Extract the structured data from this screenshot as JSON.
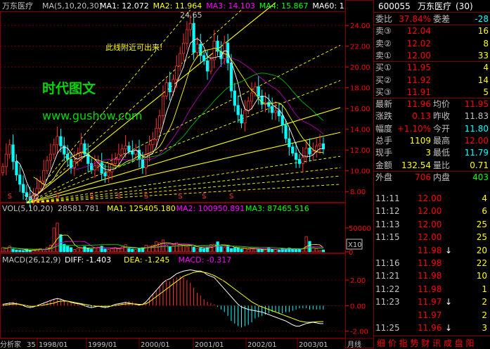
{
  "chart_data": [
    {
      "type": "candlestick",
      "panel": "price",
      "title": "万东医疗",
      "indicator_label": "MA(5,10,20,30)",
      "indicators": [
        {
          "name": "MA1",
          "value": "12.072",
          "color": "#ffffff"
        },
        {
          "name": "MA2",
          "value": "11.964",
          "color": "#ffff00"
        },
        {
          "name": "MA3",
          "value": "14.103",
          "color": "#ff00ff"
        },
        {
          "name": "MA4",
          "value": "15.867",
          "color": "#00ff00"
        },
        {
          "name": "MA60",
          "value": "1",
          "color": "#ffffff"
        }
      ],
      "y_ticks": [
        "24.00",
        "22.00",
        "20.00",
        "18.00",
        "16.00",
        "14.00",
        "12.00",
        "10.00",
        "8.00"
      ],
      "ylim": [
        7.0,
        25.3
      ],
      "peak_label": "24.65",
      "low_label": "7.02",
      "annotations": [
        "此线附近可出来!",
        "时代图文",
        "www.gushow.com"
      ],
      "s_marker": "S",
      "s_markers_x": [
        2,
        8,
        16,
        26,
        34,
        42,
        52,
        59,
        67
      ],
      "closes": [
        10.4,
        11.6,
        12.5,
        10.9,
        9.6,
        8.7,
        7.9,
        7.5,
        7.2,
        7.7,
        8.3,
        9.0,
        10.0,
        11.0,
        11.6,
        12.5,
        13.3,
        12.4,
        11.6,
        11.1,
        10.3,
        10.9,
        11.7,
        12.6,
        11.6,
        10.7,
        10.1,
        10.5,
        10.8,
        9.8,
        9.5,
        9.9,
        10.7,
        11.1,
        11.6,
        12.1,
        12.4,
        11.9,
        11.6,
        12.0,
        11.1,
        10.3,
        11.6,
        12.5,
        13.0,
        14.1,
        15.3,
        17.2,
        18.5,
        17.6,
        18.8,
        20.1,
        21.3,
        22.3,
        23.6,
        24.2,
        21.4,
        22.2,
        21.1,
        20.6,
        19.6,
        20.7,
        22.5,
        21.5,
        20.8,
        22.3,
        20.4,
        17.7,
        16.3,
        15.4,
        14.6,
        15.8,
        16.7,
        17.5,
        18.1,
        17.2,
        16.4,
        16.6,
        16.2,
        15.6,
        15.8,
        15.3,
        14.4,
        13.1,
        12.3,
        11.7,
        11.1,
        10.7,
        11.3,
        12.2,
        11.6,
        11.9,
        12.4,
        12.6,
        12.1
      ]
    },
    {
      "type": "bar",
      "panel": "volume",
      "indicator_label": "VOL(5,10,20)",
      "value": "28581.781",
      "indicators": [
        {
          "name": "MA1",
          "value": "125405.180",
          "color": "#ffff00"
        },
        {
          "name": "MA2",
          "value": "100950.891",
          "color": "#ff00ff"
        },
        {
          "name": "MA3",
          "value": "87465.516",
          "color": "#00ff00"
        }
      ],
      "y_ticks": [
        "50000",
        "0"
      ],
      "ylim": [
        0,
        85000
      ],
      "unit_label": "X10",
      "values": [
        9000,
        7000,
        12000,
        6000,
        4000,
        3500,
        3000,
        5000,
        3000,
        3200,
        6000,
        7000,
        5000,
        9000,
        14000,
        50000,
        60000,
        36000,
        16000,
        12000,
        9000,
        5000,
        7000,
        9000,
        11000,
        8000,
        6000,
        9000,
        10000,
        12000,
        6000,
        5000,
        7000,
        9000,
        8000,
        11000,
        15000,
        7000,
        6000,
        5000,
        8000,
        9000,
        14000,
        12000,
        14000,
        21000,
        19000,
        25000,
        15000,
        11000,
        13000,
        19000,
        16000,
        13000,
        11000,
        13000,
        10000,
        7000,
        8000,
        7000,
        9000,
        15000,
        16000,
        21000,
        12000,
        9000,
        12000,
        7000,
        8000,
        9000,
        6000,
        8000,
        5000,
        7000,
        6000,
        5000,
        6000,
        4000,
        9000,
        6000,
        5000,
        4000,
        7000,
        6000,
        8000,
        6000,
        5000,
        6000,
        7000,
        32000,
        22000,
        9000,
        7000,
        3000,
        4000
      ]
    },
    {
      "type": "bar",
      "panel": "macd",
      "indicator_label": "MACD(26,12,9)",
      "indicators": [
        {
          "name": "DIFF",
          "value": "-1.403",
          "color": "#ffffff"
        },
        {
          "name": "DEA",
          "value": "-1.245",
          "color": "#ffff00"
        },
        {
          "name": "MACD",
          "value": "-0.317",
          "color": "#ff00ff"
        }
      ],
      "y_ticks": [
        "2.00",
        "0.00",
        "-2.00"
      ],
      "ylim": [
        -2.4,
        3.1
      ],
      "values": [
        0.15,
        0.2,
        0.25,
        0.3,
        0.25,
        0.15,
        0.05,
        -0.05,
        -0.1,
        -0.05,
        0.05,
        0.1,
        0.2,
        0.3,
        0.4,
        0.5,
        0.6,
        0.55,
        0.4,
        0.3,
        0.2,
        0.15,
        0.1,
        0.05,
        -0.05,
        -0.1,
        -0.15,
        -0.1,
        -0.05,
        -0.1,
        -0.15,
        -0.1,
        -0.05,
        0.05,
        0.1,
        0.2,
        0.3,
        0.35,
        0.3,
        0.2,
        0.1,
        0.1,
        0.3,
        0.6,
        0.9,
        1.2,
        1.5,
        1.8,
        2.0,
        1.9,
        2.1,
        2.2,
        2.3,
        2.2,
        2.0,
        1.8,
        1.4,
        1.0,
        0.8,
        0.5,
        0.3,
        0.2,
        0.1,
        -0.1,
        -0.3,
        -0.5,
        -0.8,
        -1.2,
        -1.4,
        -1.6,
        -1.7,
        -1.6,
        -1.5,
        -1.3,
        -1.0,
        -0.9,
        -0.8,
        -0.7,
        -0.6,
        -0.5,
        -0.5,
        -0.6,
        -0.6,
        -0.5,
        -0.5,
        -0.4,
        -0.3,
        -0.2,
        -0.2,
        -0.2,
        -0.3,
        -0.3,
        -0.3,
        -0.3,
        -0.3
      ],
      "diff": [
        0.1,
        0.15,
        0.2,
        0.2,
        0.15,
        0.1,
        0.0,
        -0.1,
        -0.15,
        -0.1,
        0.0,
        0.1,
        0.2,
        0.3,
        0.4,
        0.5,
        0.55,
        0.5,
        0.4,
        0.35,
        0.25,
        0.2,
        0.15,
        0.1,
        0.0,
        -0.1,
        -0.15,
        -0.1,
        -0.05,
        -0.1,
        -0.15,
        -0.1,
        0.0,
        0.1,
        0.15,
        0.2,
        0.25,
        0.2,
        0.15,
        0.1,
        0.05,
        0.1,
        0.3,
        0.6,
        0.9,
        1.2,
        1.5,
        1.8,
        2.0,
        2.1,
        2.3,
        2.5,
        2.6,
        2.7,
        2.75,
        2.8,
        2.75,
        2.7,
        2.7,
        2.6,
        2.4,
        2.3,
        2.2,
        1.9,
        1.6,
        1.3,
        1.0,
        0.7,
        0.4,
        0.1,
        -0.1,
        -0.2,
        -0.3,
        -0.35,
        -0.4,
        -0.45,
        -0.5,
        -0.6,
        -0.7,
        -0.8,
        -0.9,
        -1.0,
        -1.1,
        -1.2,
        -1.35,
        -1.5,
        -1.6,
        -1.6,
        -1.5,
        -1.4,
        -1.35,
        -1.3,
        -1.35,
        -1.4,
        -1.4
      ],
      "dea": [
        0.0,
        0.05,
        0.1,
        0.12,
        0.12,
        0.1,
        0.05,
        0.0,
        -0.05,
        -0.05,
        -0.03,
        0.0,
        0.05,
        0.1,
        0.15,
        0.2,
        0.3,
        0.35,
        0.35,
        0.35,
        0.3,
        0.25,
        0.2,
        0.15,
        0.1,
        0.05,
        0.0,
        -0.03,
        -0.05,
        -0.05,
        -0.05,
        -0.04,
        -0.02,
        0.0,
        0.05,
        0.1,
        0.12,
        0.14,
        0.14,
        0.12,
        0.1,
        0.1,
        0.15,
        0.3,
        0.5,
        0.7,
        0.9,
        1.1,
        1.3,
        1.5,
        1.7,
        1.9,
        2.1,
        2.3,
        2.4,
        2.5,
        2.6,
        2.65,
        2.65,
        2.6,
        2.55,
        2.45,
        2.35,
        2.2,
        2.05,
        1.9,
        1.7,
        1.5,
        1.3,
        1.1,
        0.9,
        0.7,
        0.5,
        0.3,
        0.15,
        0.0,
        -0.1,
        -0.2,
        -0.3,
        -0.4,
        -0.5,
        -0.6,
        -0.7,
        -0.8,
        -0.9,
        -1.0,
        -1.1,
        -1.2,
        -1.25,
        -1.3,
        -1.3,
        -1.28,
        -1.26,
        -1.25,
        -1.245
      ]
    }
  ],
  "x_labels": [
    "分析家",
    "35",
    "1998/01",
    "1999/01",
    "2000/01",
    "2001/01",
    "2002/01",
    "2003/01",
    "月线"
  ],
  "panel": {
    "header": {
      "code": "600055",
      "name": "万东医疗",
      "num": "(30)"
    },
    "rows": [
      {
        "l1": "委比",
        "v1": "37.84%",
        "l2": "委差",
        "v2": "-28",
        "c1": "#ff0000",
        "c2": "#00ffff"
      },
      {
        "l1": "卖③",
        "v1": "12.04",
        "v2": "16",
        "c1": "#ff0000",
        "c2": "#ffff00"
      },
      {
        "l1": "卖②",
        "v1": "12.02",
        "v2": "8",
        "c1": "#ff0000",
        "c2": "#ffff00"
      },
      {
        "l1": "卖①",
        "v1": "12.00",
        "v2": "33",
        "c1": "#ff0000",
        "c2": "#ffff00"
      },
      {
        "l1": "买①",
        "v1": "11.95",
        "v2": "4",
        "c1": "#ff0000",
        "c2": "#ffff00"
      },
      {
        "l1": "买②",
        "v1": "11.92",
        "v2": "14",
        "c1": "#ff0000",
        "c2": "#ffff00"
      },
      {
        "l1": "买③",
        "v1": "11.91",
        "v2": "5",
        "c1": "#ff0000",
        "c2": "#ffff00"
      },
      {
        "l1": "最新",
        "v1": "11.96",
        "l2": "均价",
        "v2": "11.95",
        "c1": "#ff0000",
        "c2": "#ff0000"
      },
      {
        "l1": "涨跌",
        "v1": "0.13",
        "l2": "昨收",
        "v2": "11.83",
        "c1": "#ff0000",
        "c2": "#c0c0c0"
      },
      {
        "l1": "幅度",
        "v1": "+1.10%",
        "l2": "今开",
        "v2": "11.80",
        "c1": "#ff0000",
        "c2": "#00ffff"
      },
      {
        "l1": "总手",
        "v1": "1109",
        "l2": "最高",
        "v2": "12.00",
        "c1": "#ffff00",
        "c2": "#ff0000"
      },
      {
        "l1": "现手",
        "v1": "3",
        "l2": "最低",
        "v2": "11.79",
        "c1": "#ffff00",
        "c2": "#00ffff"
      },
      {
        "l1": "金额",
        "v1": "132.54",
        "l2": "量比",
        "v2": "0.71",
        "c1": "#ffff00",
        "c2": "#ffff00"
      },
      {
        "l1": "外盘",
        "v1": "706",
        "l2": "内盘",
        "v2": "403",
        "c1": "#ff0000",
        "c2": "#00ff00"
      }
    ],
    "ticks": [
      {
        "t": "11:11",
        "p": "12.00",
        "v": "4",
        "arrow": ""
      },
      {
        "t": "11:12",
        "p": "12.00",
        "v": "6",
        "arrow": ""
      },
      {
        "t": "11:13",
        "p": "12.00",
        "v": "25",
        "arrow": ""
      },
      {
        "t": "11:15",
        "p": "12.00",
        "v": "25",
        "arrow": ""
      },
      {
        "t": "",
        "p": "11.98",
        "v": "20",
        "arrow": "↓"
      },
      {
        "t": "11:16",
        "p": "11.98",
        "v": "22",
        "arrow": ""
      },
      {
        "t": "11:21",
        "p": "11.98",
        "v": "10",
        "arrow": ""
      },
      {
        "t": "11:22",
        "p": "11.98",
        "v": "1",
        "arrow": ""
      },
      {
        "t": "11:23",
        "p": "11.97",
        "v": "2",
        "arrow": "↓"
      },
      {
        "t": "",
        "p": "11.97",
        "v": "2",
        "arrow": ""
      },
      {
        "t": "11:25",
        "p": "11.96",
        "v": "3",
        "arrow": "↓"
      }
    ],
    "footer": "细  价  指  势  财  讯  成  盘  阳"
  }
}
